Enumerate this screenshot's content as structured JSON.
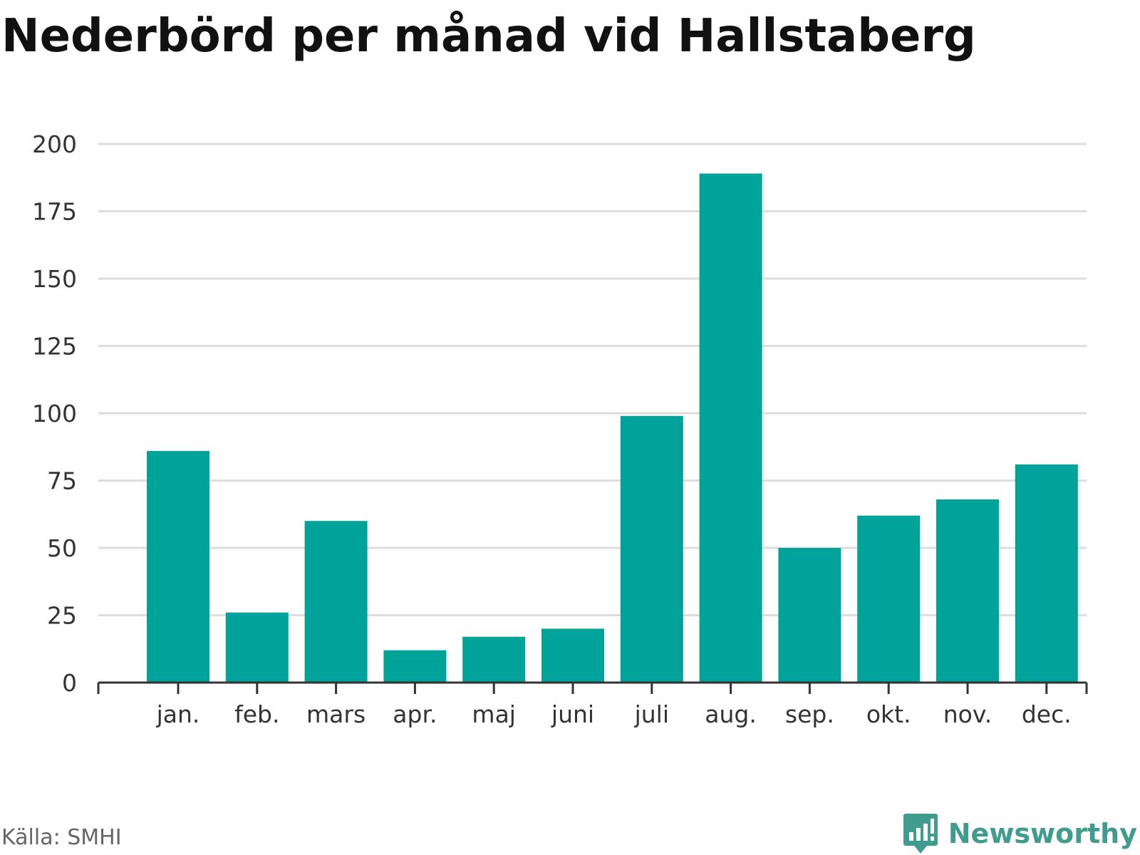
{
  "title": "Nederbörd per månad vid Hallstaberg",
  "source": "Källa: SMHI",
  "brand": {
    "name": "Newsworthy",
    "logo_icon": "speech-bubble-bar-chart-icon",
    "color": "#3f9c8f"
  },
  "colors": {
    "bar": "#00a399",
    "grid": "#dddddd",
    "axis": "#333333"
  },
  "chart_data": {
    "type": "bar",
    "title": "Nederbörd per månad vid Hallstaberg",
    "xlabel": "",
    "ylabel": "",
    "categories": [
      "jan.",
      "feb.",
      "mars",
      "apr.",
      "maj",
      "juni",
      "juli",
      "aug.",
      "sep.",
      "okt.",
      "nov.",
      "dec."
    ],
    "values": [
      86,
      26,
      60,
      12,
      17,
      20,
      99,
      189,
      50,
      62,
      68,
      81
    ],
    "ylim": [
      0,
      200
    ],
    "yticks": [
      0,
      25,
      50,
      75,
      100,
      125,
      150,
      175,
      200
    ],
    "grid": true,
    "legend": "none"
  }
}
